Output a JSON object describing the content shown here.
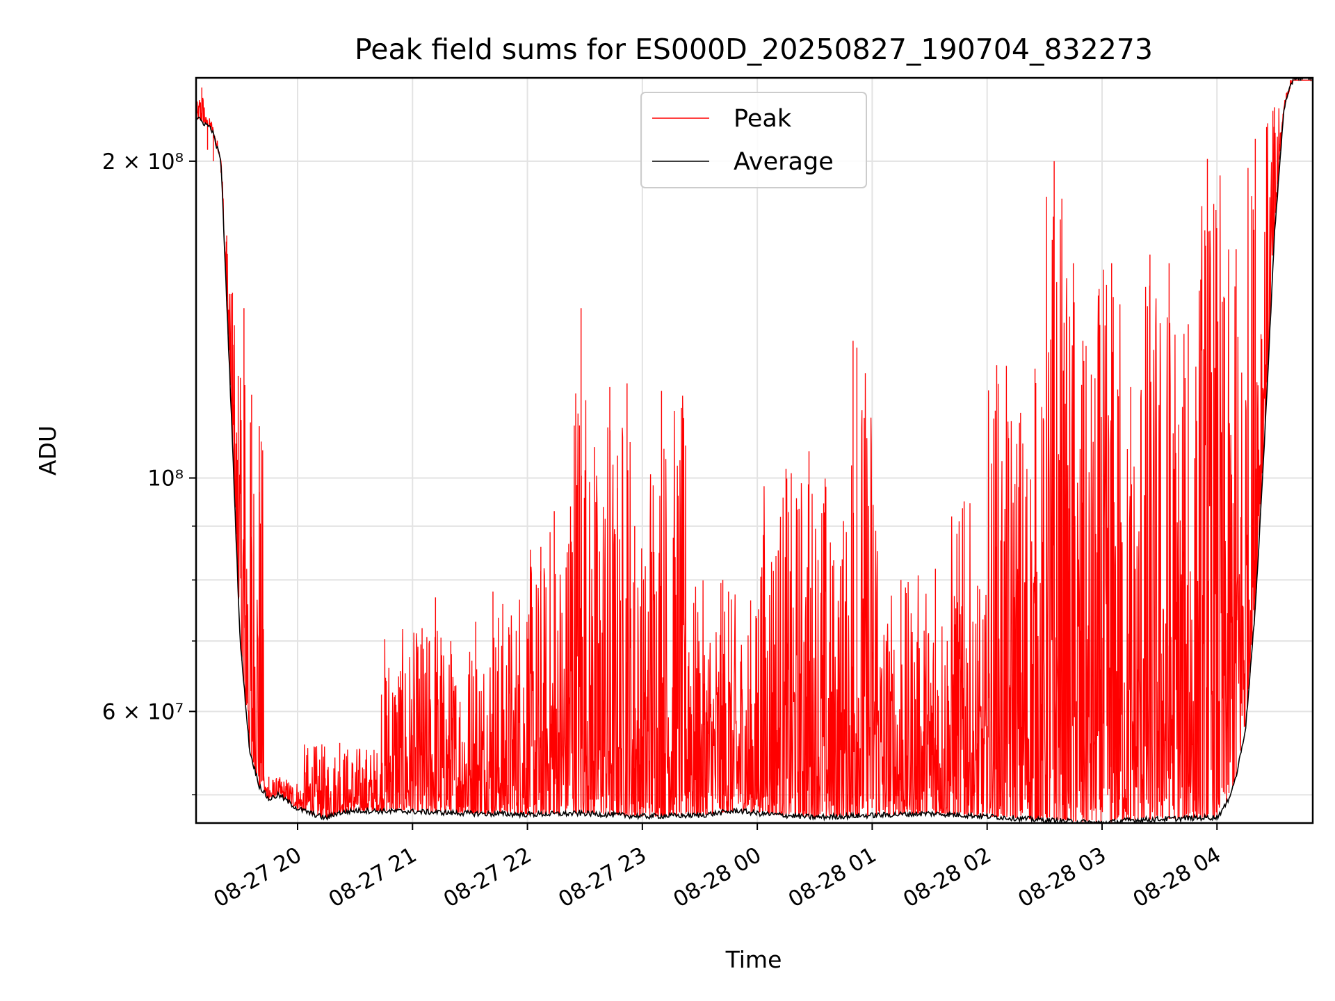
{
  "chart_data": {
    "type": "line",
    "title": "Peak field sums for ES000D_20250827_190704_832273",
    "xlabel": "Time",
    "ylabel": "ADU",
    "y_scale": "log",
    "ylim": [
      47000000,
      240000000
    ],
    "xlim": [
      "2025-08-27 19:07:00",
      "2025-08-28 04:50:00"
    ],
    "grid": true,
    "legend_position": "top-center",
    "x_ticks": [
      {
        "value": "2025-08-27 20:00",
        "label": "08-27 20"
      },
      {
        "value": "2025-08-27 21:00",
        "label": "08-27 21"
      },
      {
        "value": "2025-08-27 22:00",
        "label": "08-27 22"
      },
      {
        "value": "2025-08-27 23:00",
        "label": "08-27 23"
      },
      {
        "value": "2025-08-28 00:00",
        "label": "08-28 00"
      },
      {
        "value": "2025-08-28 01:00",
        "label": "08-28 01"
      },
      {
        "value": "2025-08-28 02:00",
        "label": "08-28 02"
      },
      {
        "value": "2025-08-28 03:00",
        "label": "08-28 03"
      },
      {
        "value": "2025-08-28 04:00",
        "label": "08-28 04"
      }
    ],
    "y_ticks": [
      {
        "value": 60000000,
        "label": "6 × 10⁷"
      },
      {
        "value": 100000000,
        "label": "10⁸"
      },
      {
        "value": 200000000,
        "label": "2 × 10⁸"
      }
    ],
    "y_minor_ticks": [
      50000000,
      70000000,
      80000000,
      90000000
    ],
    "series": [
      {
        "name": "Average",
        "color": "#000000",
        "x": [
          "2025-08-27 19:07",
          "2025-08-27 19:15",
          "2025-08-27 19:20",
          "2025-08-27 19:25",
          "2025-08-27 19:30",
          "2025-08-27 19:35",
          "2025-08-27 19:40",
          "2025-08-27 19:45",
          "2025-08-27 19:50",
          "2025-08-27 20:00",
          "2025-08-27 20:10",
          "2025-08-27 20:15",
          "2025-08-27 20:20",
          "2025-08-27 20:30",
          "2025-08-27 21:00",
          "2025-08-27 21:30",
          "2025-08-27 22:00",
          "2025-08-27 22:30",
          "2025-08-27 23:00",
          "2025-08-27 23:30",
          "2025-08-27 23:50",
          "2025-08-28 00:00",
          "2025-08-28 00:30",
          "2025-08-28 01:00",
          "2025-08-28 01:30",
          "2025-08-28 02:00",
          "2025-08-28 02:30",
          "2025-08-28 03:00",
          "2025-08-28 03:15",
          "2025-08-28 03:30",
          "2025-08-28 04:00",
          "2025-08-28 04:05",
          "2025-08-28 04:10",
          "2025-08-28 04:15",
          "2025-08-28 04:20",
          "2025-08-28 04:25",
          "2025-08-28 04:30",
          "2025-08-28 04:35",
          "2025-08-28 04:40",
          "2025-08-28 04:50"
        ],
        "values": [
          220000000,
          215000000,
          200000000,
          120000000,
          70000000,
          55000000,
          51000000,
          49500000,
          50000000,
          48500000,
          47800000,
          47500000,
          48000000,
          48300000,
          48200000,
          48000000,
          47900000,
          48000000,
          47700000,
          47800000,
          48300000,
          48000000,
          47600000,
          47800000,
          48000000,
          47700000,
          47300000,
          47000000,
          47300000,
          47400000,
          47600000,
          49000000,
          52000000,
          58000000,
          75000000,
          110000000,
          170000000,
          225000000,
          240000000,
          240000000
        ]
      },
      {
        "name": "Peak",
        "color": "#ff0000",
        "x": [
          "2025-08-27 19:07",
          "2025-08-27 19:10",
          "2025-08-27 19:13",
          "2025-08-27 19:16",
          "2025-08-27 19:20",
          "2025-08-27 19:23",
          "2025-08-27 19:26",
          "2025-08-27 19:29",
          "2025-08-27 19:32",
          "2025-08-27 19:36",
          "2025-08-27 19:40",
          "2025-08-27 19:45",
          "2025-08-27 20:22",
          "2025-08-27 21:05",
          "2025-08-27 21:12",
          "2025-08-27 21:20",
          "2025-08-27 21:33",
          "2025-08-27 21:42",
          "2025-08-27 22:07",
          "2025-08-27 22:14",
          "2025-08-27 22:28",
          "2025-08-27 22:35",
          "2025-08-27 22:43",
          "2025-08-27 22:47",
          "2025-08-27 22:52",
          "2025-08-27 22:56",
          "2025-08-27 23:10",
          "2025-08-27 23:42",
          "2025-08-27 23:45",
          "2025-08-28 00:15",
          "00:27",
          "2025-08-28 00:45",
          "2025-08-28 00:50",
          "2025-08-28 00:52",
          "2025-08-28 01:15",
          "2025-08-28 01:33",
          "2025-08-28 01:48",
          "2025-08-28 01:55",
          "2025-08-28 02:05",
          "2025-08-28 02:25",
          "2025-08-28 02:35",
          "2025-08-28 02:45",
          "2025-08-28 02:50",
          "2025-08-28 03:05",
          "2025-08-28 03:15",
          "2025-08-28 03:25",
          "2025-08-28 03:35",
          "2025-08-28 03:45",
          "2025-08-28 03:55",
          "2025-08-28 04:10",
          "2025-08-28 04:20",
          "2025-08-28 04:30"
        ],
        "values": [
          228000000,
          235000000,
          205000000,
          200000000,
          195000000,
          170000000,
          150000000,
          125000000,
          145000000,
          120000000,
          112000000,
          52000000,
          56000000,
          72000000,
          77000000,
          70000000,
          73000000,
          78000000,
          86000000,
          93000000,
          145000000,
          107000000,
          122000000,
          105000000,
          123000000,
          90000000,
          121000000,
          80000000,
          78000000,
          102000000,
          106000000,
          91000000,
          135000000,
          133000000,
          80000000,
          82000000,
          95000000,
          79000000,
          128000000,
          127000000,
          200000000,
          160000000,
          135000000,
          160000000,
          122000000,
          163000000,
          160000000,
          140000000,
          201000000,
          165000000,
          210000000,
          225000000
        ]
      }
    ]
  },
  "legend": {
    "items": [
      {
        "label": "Peak",
        "color": "#ff0000"
      },
      {
        "label": "Average",
        "color": "#000000"
      }
    ]
  }
}
